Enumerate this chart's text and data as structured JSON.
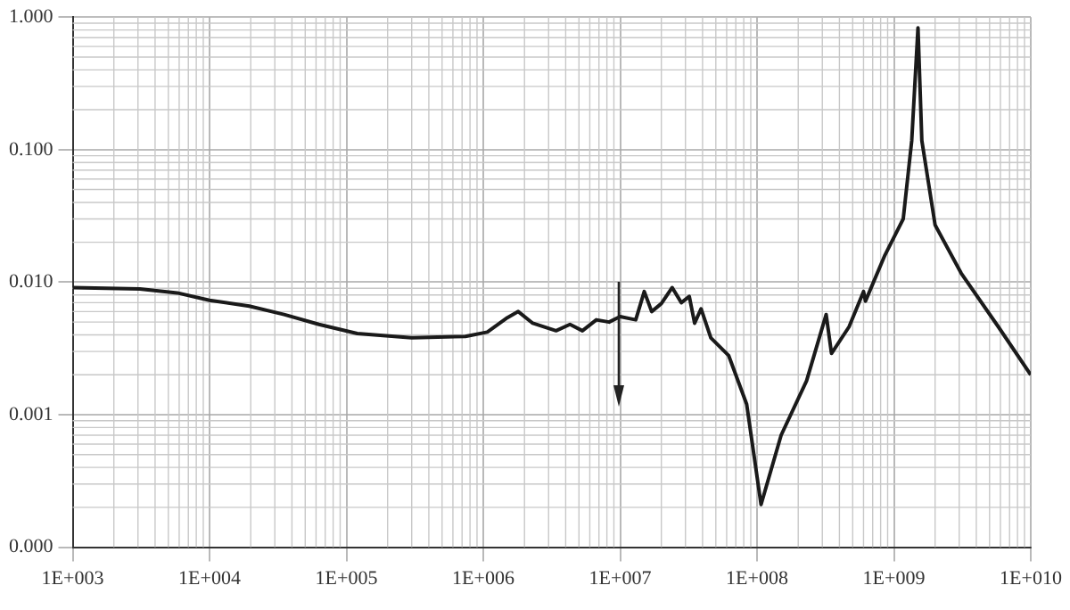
{
  "chart_data": {
    "type": "line",
    "log": "xy",
    "grid": true,
    "legend": false,
    "marker": "none",
    "line_style": "solid",
    "xlim": [
      1000,
      10000000000
    ],
    "ylim": [
      0.0001,
      1
    ],
    "xticks": [
      {
        "value": 1000,
        "label": "1E+003"
      },
      {
        "value": 10000,
        "label": "1E+004"
      },
      {
        "value": 100000,
        "label": "1E+005"
      },
      {
        "value": 1000000,
        "label": "1E+006"
      },
      {
        "value": 10000000,
        "label": "1E+007"
      },
      {
        "value": 100000000,
        "label": "1E+008"
      },
      {
        "value": 1000000000,
        "label": "1E+009"
      },
      {
        "value": 10000000000,
        "label": "1E+010"
      }
    ],
    "yticks": [
      {
        "value": 0.0001,
        "label": "0.000"
      },
      {
        "value": 0.001,
        "label": "0.001"
      },
      {
        "value": 0.01,
        "label": "0.010"
      },
      {
        "value": 0.1,
        "label": "0.100"
      },
      {
        "value": 1,
        "label": "1.000"
      }
    ],
    "series": [
      {
        "color": "#1a1a1a",
        "x": [
          1000,
          3100,
          5800,
          10000,
          19500,
          35000,
          63000,
          120000,
          300000,
          740000,
          1070000,
          1500000,
          1800000,
          2300000,
          3400000,
          4300000,
          5300000,
          6700000,
          8300000,
          10000000,
          13000000,
          15000000,
          17000000,
          20000000,
          24000000,
          28000000,
          32000000,
          35000000,
          39000000,
          46000000,
          62000000,
          84000000,
          107000000,
          150000000,
          230000000,
          320000000,
          350000000,
          470000000,
          600000000,
          620000000,
          860000000,
          1170000000,
          1350000000,
          1500000000,
          1600000000,
          2000000000,
          3100000000,
          5800000000,
          10000000000
        ],
        "values": [
          0.0091,
          0.0089,
          0.0083,
          0.0073,
          0.0066,
          0.0057,
          0.0048,
          0.0041,
          0.0038,
          0.0039,
          0.0042,
          0.0054,
          0.006,
          0.0049,
          0.0043,
          0.0048,
          0.0043,
          0.0052,
          0.005,
          0.0055,
          0.0052,
          0.0085,
          0.006,
          0.0069,
          0.0091,
          0.007,
          0.0078,
          0.0049,
          0.0063,
          0.0038,
          0.0028,
          0.0012,
          0.00021,
          0.0007,
          0.0018,
          0.0057,
          0.0029,
          0.0046,
          0.0085,
          0.0072,
          0.016,
          0.03,
          0.117,
          0.83,
          0.117,
          0.027,
          0.0117,
          0.0046,
          0.002
        ]
      }
    ]
  }
}
